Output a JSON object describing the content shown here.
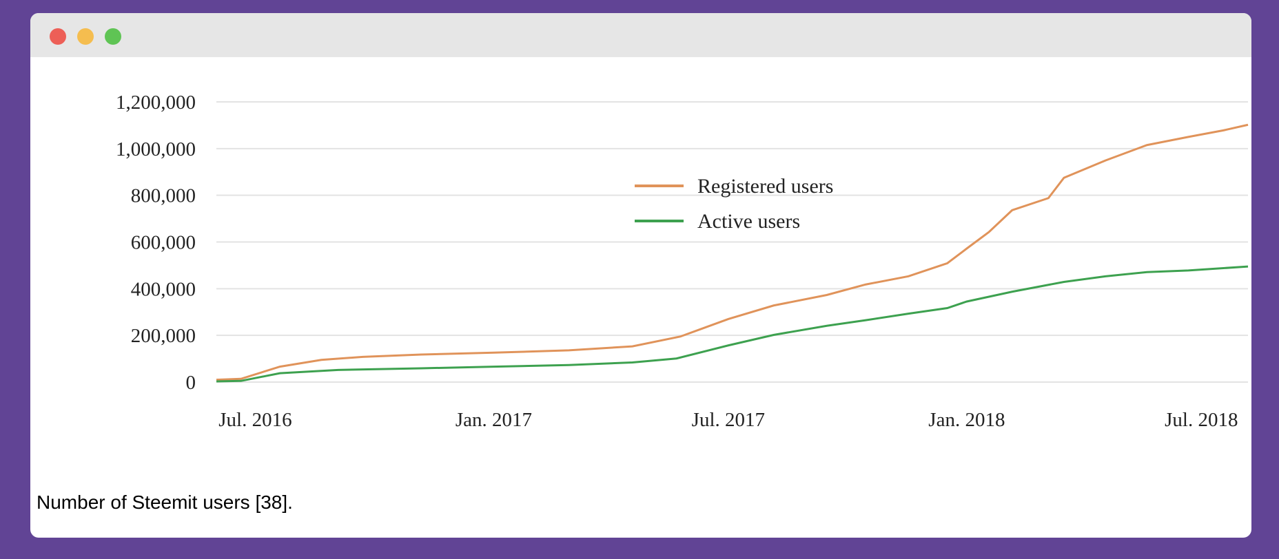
{
  "window": {
    "controls": {
      "close_color": "#ed5f57",
      "minimize_color": "#f5bd4f",
      "maximize_color": "#5fc454"
    }
  },
  "caption": "Number of Steemit users [38].",
  "chart_data": {
    "type": "line",
    "title": "",
    "xlabel": "",
    "ylabel": "",
    "ylim": [
      0,
      1200000
    ],
    "xlim": [
      "2016-06-01",
      "2018-08-06"
    ],
    "grid": true,
    "legend_position": "top-center",
    "yticks": [
      {
        "value": 0,
        "label": "0"
      },
      {
        "value": 200000,
        "label": "200,000"
      },
      {
        "value": 400000,
        "label": "400,000"
      },
      {
        "value": 600000,
        "label": "600,000"
      },
      {
        "value": 800000,
        "label": "800,000"
      },
      {
        "value": 1000000,
        "label": "1,000,000"
      },
      {
        "value": 1200000,
        "label": "1,200,000"
      }
    ],
    "xticks": [
      {
        "value": "2016-07-01",
        "label": "Jul. 2016"
      },
      {
        "value": "2017-01-01",
        "label": "Jan. 2017"
      },
      {
        "value": "2017-07-01",
        "label": "Jul. 2017"
      },
      {
        "value": "2018-01-01",
        "label": "Jan. 2018"
      },
      {
        "value": "2018-07-01",
        "label": "Jul. 2018"
      }
    ],
    "series": [
      {
        "name": "Registered users",
        "color": "#e0935a",
        "points": [
          [
            "2016-06-01",
            10000
          ],
          [
            "2016-06-20",
            14000
          ],
          [
            "2016-07-20",
            66000
          ],
          [
            "2016-08-21",
            95000
          ],
          [
            "2016-09-22",
            108000
          ],
          [
            "2016-11-06",
            118000
          ],
          [
            "2017-01-01",
            126000
          ],
          [
            "2017-02-28",
            136000
          ],
          [
            "2017-04-18",
            153000
          ],
          [
            "2017-05-25",
            195000
          ],
          [
            "2017-07-01",
            270000
          ],
          [
            "2017-08-05",
            328000
          ],
          [
            "2017-09-15",
            373000
          ],
          [
            "2017-10-15",
            418000
          ],
          [
            "2017-11-17",
            453000
          ],
          [
            "2017-12-17",
            509000
          ],
          [
            "2018-01-01",
            572000
          ],
          [
            "2018-01-18",
            642000
          ],
          [
            "2018-02-05",
            736000
          ],
          [
            "2018-03-05",
            788000
          ],
          [
            "2018-03-17",
            875000
          ],
          [
            "2018-04-18",
            949000
          ],
          [
            "2018-05-20",
            1015000
          ],
          [
            "2018-06-21",
            1050000
          ],
          [
            "2018-07-18",
            1078000
          ],
          [
            "2018-08-06",
            1102000
          ]
        ]
      },
      {
        "name": "Active users",
        "color": "#3da14f",
        "points": [
          [
            "2016-06-01",
            3000
          ],
          [
            "2016-06-20",
            5000
          ],
          [
            "2016-07-20",
            38000
          ],
          [
            "2016-09-03",
            52000
          ],
          [
            "2016-11-06",
            59000
          ],
          [
            "2017-01-01",
            66000
          ],
          [
            "2017-02-28",
            73000
          ],
          [
            "2017-04-18",
            84000
          ],
          [
            "2017-05-22",
            101000
          ],
          [
            "2017-07-01",
            157000
          ],
          [
            "2017-08-05",
            202000
          ],
          [
            "2017-09-15",
            241000
          ],
          [
            "2017-10-15",
            265000
          ],
          [
            "2017-11-17",
            293000
          ],
          [
            "2017-12-17",
            317000
          ],
          [
            "2018-01-01",
            345000
          ],
          [
            "2018-02-05",
            387000
          ],
          [
            "2018-03-17",
            429000
          ],
          [
            "2018-04-18",
            453000
          ],
          [
            "2018-05-20",
            471000
          ],
          [
            "2018-06-21",
            478000
          ],
          [
            "2018-08-06",
            495000
          ]
        ]
      }
    ]
  }
}
